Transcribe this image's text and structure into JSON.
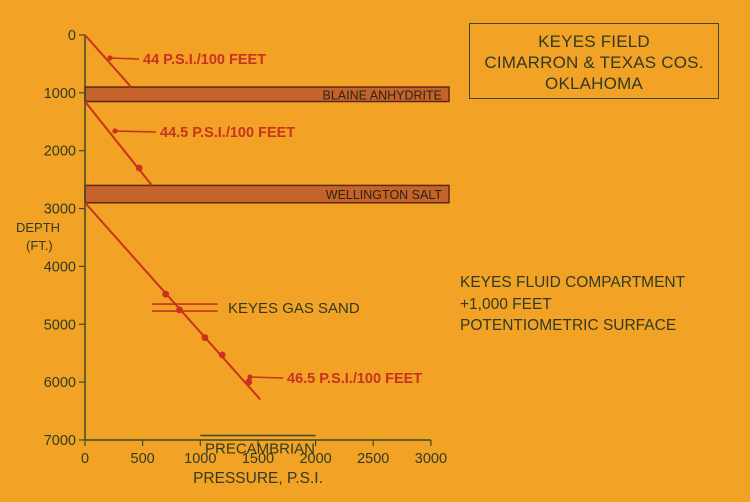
{
  "title_box": {
    "line1": "KEYES FIELD",
    "line2": "CIMARRON & TEXAS COS.",
    "line3": "OKLAHOMA"
  },
  "side_note": {
    "line1": "KEYES FLUID COMPARTMENT",
    "line2": "+1,000 FEET",
    "line3": "POTENTIOMETRIC SURFACE"
  },
  "colors": {
    "background": "#f2a224",
    "axis": "#3b4a2a",
    "text_dark": "#2f3b24",
    "gradient_red": "#c8321f",
    "layer_fill": "#c5632a",
    "layer_stroke": "#5a2a14"
  },
  "chart_data": {
    "type": "line",
    "xlabel": "PRESSURE, P.S.I.",
    "ylabel": "DEPTH (FT.)",
    "xlim": [
      0,
      3000
    ],
    "ylim": [
      0,
      7000
    ],
    "y_inverted": true,
    "grid": false,
    "x_ticks": [
      "0",
      "500",
      "1000",
      "1500",
      "2000",
      "2500",
      "3000"
    ],
    "y_ticks": [
      "0",
      "1000",
      "2000",
      "3000",
      "4000",
      "5000",
      "6000",
      "7000"
    ],
    "series": [
      {
        "label": "44 P.S.I./100 FEET",
        "x": [
          0,
          400
        ],
        "y": [
          0,
          900
        ],
        "points": []
      },
      {
        "label": "44.5 P.S.I./100 FEET",
        "x": [
          0,
          580
        ],
        "y": [
          1150,
          2600
        ],
        "points": [
          [
            470,
            2300
          ]
        ]
      },
      {
        "label": "46.5 P.S.I./100 FEET",
        "x": [
          0,
          1520
        ],
        "y": [
          2900,
          6300
        ],
        "points": [
          [
            700,
            4480
          ],
          [
            820,
            4750
          ],
          [
            1040,
            5230
          ],
          [
            1190,
            5530
          ],
          [
            1420,
            6000
          ]
        ]
      }
    ],
    "layers": [
      {
        "name": "BLAINE ANHYDRITE",
        "top": 900,
        "bottom": 1150
      },
      {
        "name": "WELLINGTON SALT",
        "top": 2600,
        "bottom": 2900
      }
    ],
    "annotations": [
      {
        "text": "KEYES GAS SAND",
        "depth": 4720,
        "x_start": 580,
        "x_end": 1150
      },
      {
        "text": "PRECAMBRIAN",
        "depth": 6300,
        "x_start": 1000,
        "x_end": 2000
      }
    ]
  }
}
